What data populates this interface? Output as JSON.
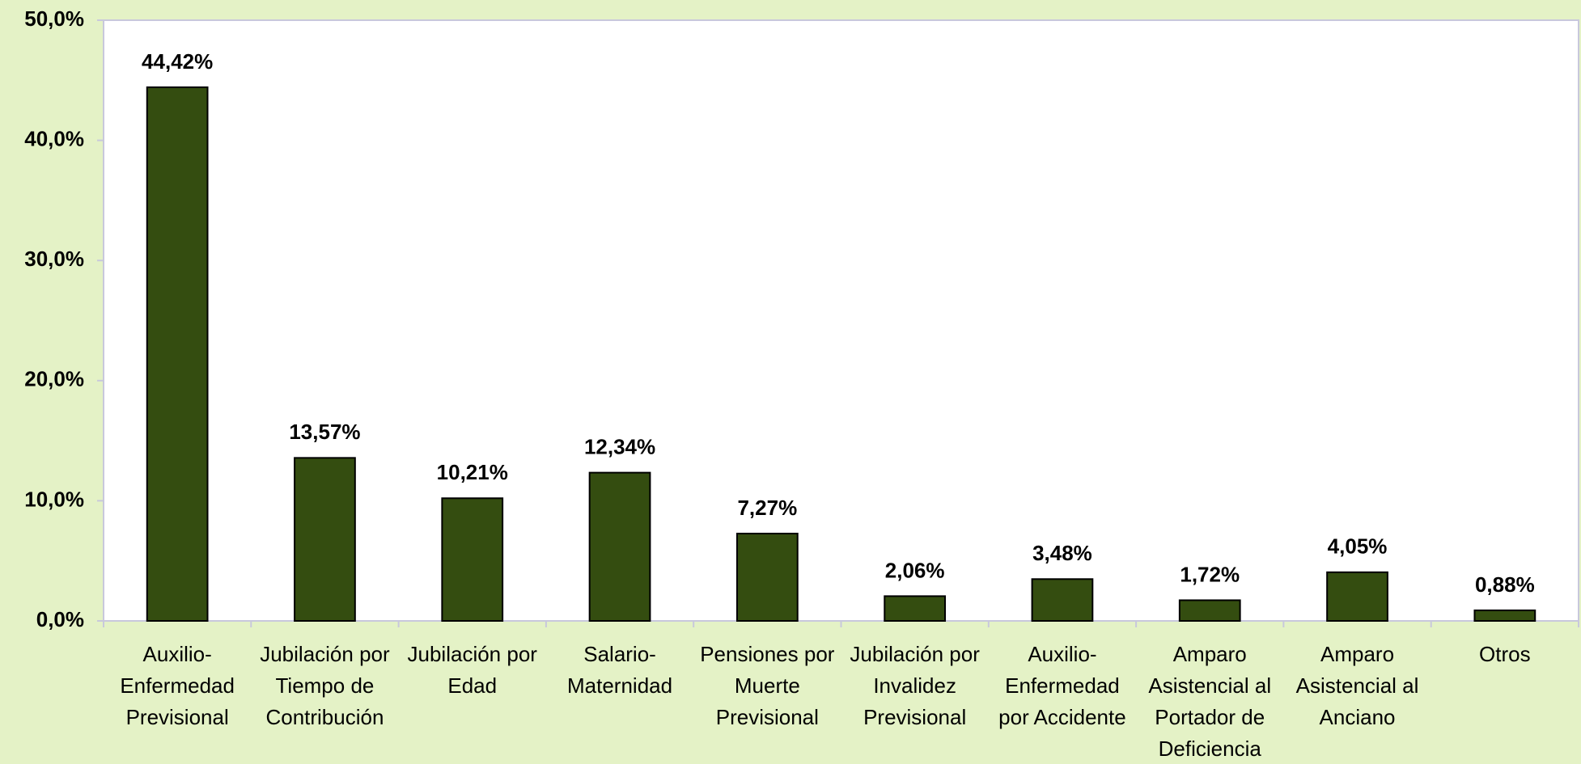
{
  "chart_data": {
    "type": "bar",
    "categories": [
      "Auxilio-Enfermedad Previsional",
      "Jubilación por Tiempo de Contribución",
      "Jubilación por Edad",
      "Salario-Maternidad",
      "Pensiones por Muerte Previsional",
      "Jubilación por Invalidez Previsional",
      "Auxilio-Enfermedad por Accidente",
      "Amparo Asistencial al Portador de Deficiencia",
      "Amparo Asistencial al Anciano",
      "Otros"
    ],
    "values": [
      44.42,
      13.57,
      10.21,
      12.34,
      7.27,
      2.06,
      3.48,
      1.72,
      4.05,
      0.88
    ],
    "value_labels": [
      "44,42%",
      "13,57%",
      "10,21%",
      "12,34%",
      "7,27%",
      "2,06%",
      "3,48%",
      "1,72%",
      "4,05%",
      "0,88%"
    ],
    "color": "#344d10",
    "ylim": [
      0,
      50
    ],
    "yticks": [
      {
        "value": 0,
        "label": "0,0%"
      },
      {
        "value": 10,
        "label": "10,0%"
      },
      {
        "value": 20,
        "label": "20,0%"
      },
      {
        "value": 30,
        "label": "30,0%"
      },
      {
        "value": 40,
        "label": "40,0%"
      },
      {
        "value": 50,
        "label": "50,0%"
      }
    ]
  }
}
